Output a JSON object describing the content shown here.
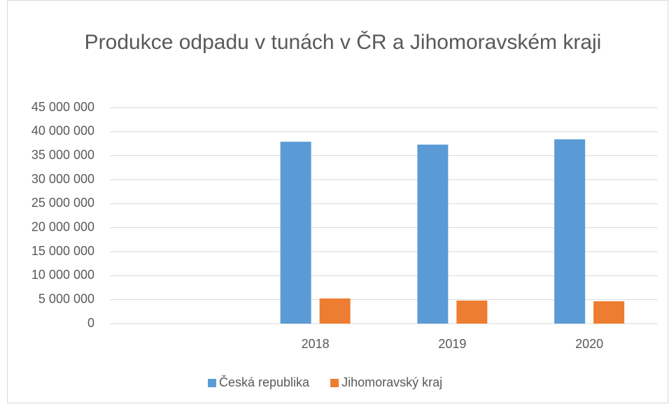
{
  "chart_data": {
    "type": "bar",
    "title": "Produkce odpadu v tunách v ČR a Jihomoravském kraji",
    "categories": [
      null,
      "2018",
      "2019",
      "2020"
    ],
    "series": [
      {
        "name": "Česká republika",
        "color": "#5b9bd5",
        "values": [
          null,
          37900000,
          37300000,
          38400000
        ]
      },
      {
        "name": "Jihomoravský kraj",
        "color": "#ed7d31",
        "values": [
          null,
          5240000,
          4800000,
          4660000
        ]
      }
    ],
    "ylim": [
      0,
      45000000
    ],
    "yticks": [
      0,
      {
        "value": 5000000,
        "label": "5 000 000"
      },
      {
        "value": 10000000,
        "label": "10 000 000"
      },
      {
        "value": 15000000,
        "label": "15 000 000"
      },
      {
        "value": 20000000,
        "label": "20 000 000"
      },
      {
        "value": 25000000,
        "label": "25 000 000"
      },
      {
        "value": 30000000,
        "label": "30 000 000"
      },
      {
        "value": 35000000,
        "label": "35 000 000"
      },
      {
        "value": 40000000,
        "label": "40 000 000"
      },
      {
        "value": 45000000,
        "label": "45 000 000"
      }
    ],
    "grid": true,
    "legend": "bottom"
  }
}
